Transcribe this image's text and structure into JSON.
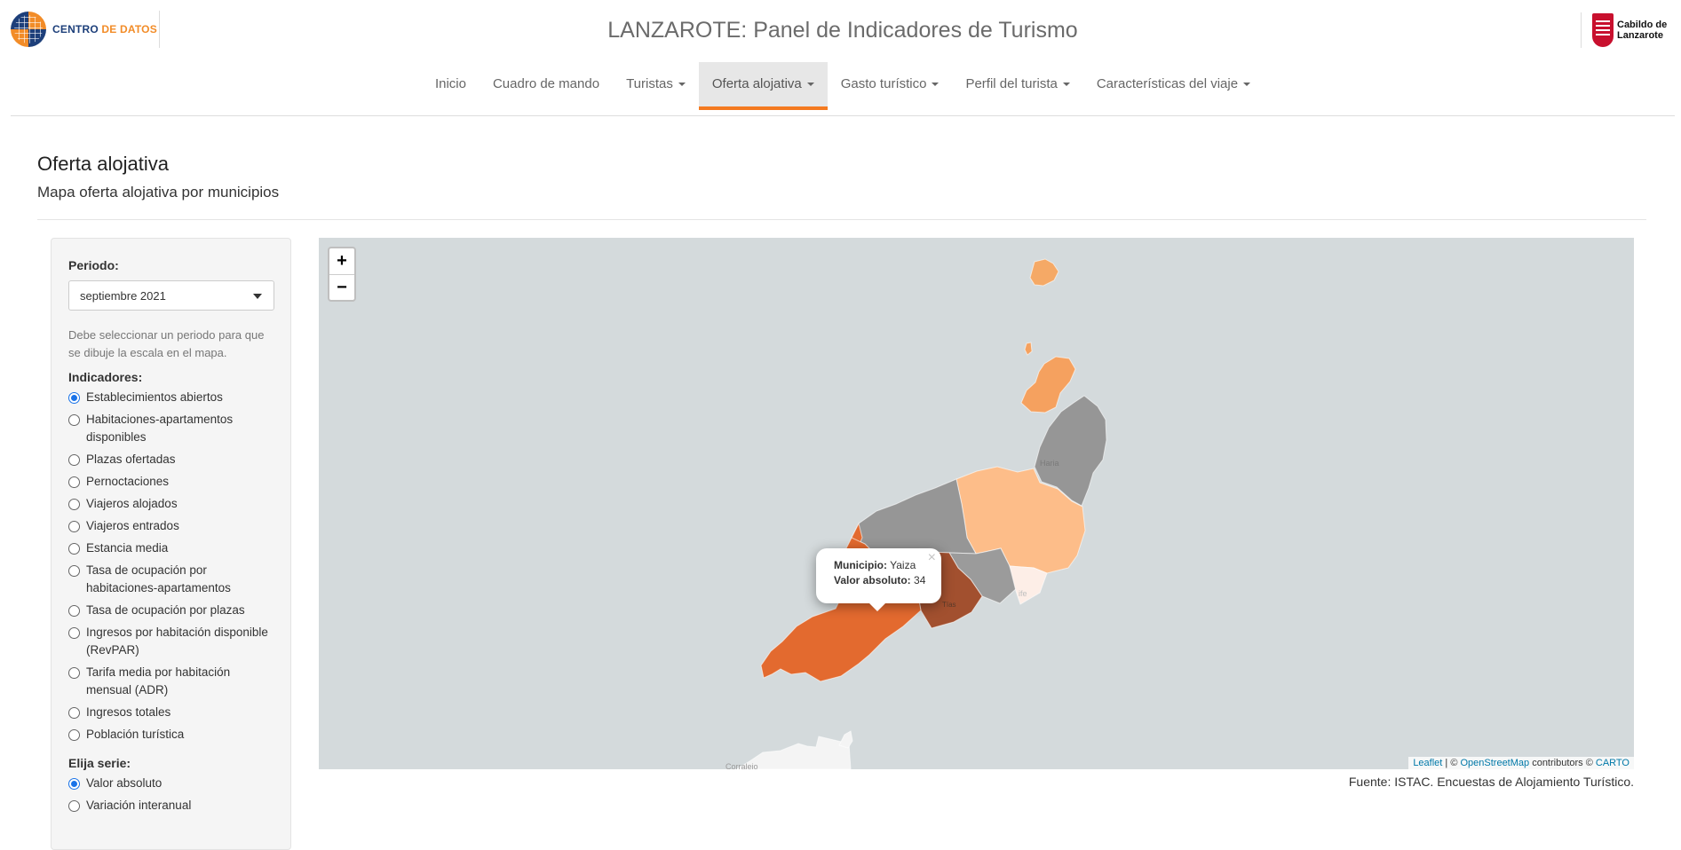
{
  "header": {
    "logo_left": {
      "part1": "CENTRO",
      "part2": "DE DATOS"
    },
    "title": "LANZAROTE: Panel de Indicadores de Turismo",
    "logo_right": {
      "line1": "Cabildo de",
      "line2": "Lanzarote"
    }
  },
  "nav": {
    "items": [
      {
        "label": "Inicio"
      },
      {
        "label": "Cuadro de mando"
      },
      {
        "label": "Turistas"
      },
      {
        "label": "Oferta alojativa"
      },
      {
        "label": "Gasto turístico"
      },
      {
        "label": "Perfil del turista"
      },
      {
        "label": "Características del viaje"
      }
    ],
    "active_index": 3
  },
  "page": {
    "title": "Oferta alojativa",
    "subtitle": "Mapa oferta alojativa por municipios"
  },
  "sidebar": {
    "periodo_label": "Periodo:",
    "periodo_value": "septiembre 2021",
    "help_text": "Debe seleccionar un periodo para que se dibuje la escala en el mapa.",
    "indicadores_label": "Indicadores:",
    "indicadores": [
      "Establecimientos abiertos",
      "Habitaciones-apartamentos disponibles",
      "Plazas ofertadas",
      "Pernoctaciones",
      "Viajeros alojados",
      "Viajeros entrados",
      "Estancia media",
      "Tasa de ocupación por habitaciones-apartamentos",
      "Tasa de ocupación por plazas",
      "Ingresos por habitación disponible (RevPAR)",
      "Tarifa media por habitación mensual (ADR)",
      "Ingresos totales",
      "Población turística"
    ],
    "indicador_selected": 0,
    "serie_label": "Elija serie:",
    "series": [
      "Valor absoluto",
      "Variación interanual"
    ],
    "serie_selected": 0
  },
  "map": {
    "zoom_in": "+",
    "zoom_out": "−",
    "colors": {
      "sea": "#d4dadc",
      "yaiza": "#e36a2f",
      "tias": "#a2502f",
      "teguise": "#fdbd89",
      "haria": "#969696",
      "tinajo": "#969696",
      "san_bartolome": "#9b9b9b",
      "arrecife": "#fdeee7",
      "la_graciosa": "#f5a15f",
      "alegranza": "#f5a966"
    },
    "popup": {
      "municipio_label": "Municipio:",
      "municipio_value": "Yaiza",
      "valor_label": "Valor absoluto:",
      "valor_value": "34"
    },
    "attribution": {
      "leaflet": "Leaflet",
      "sep": " | © ",
      "osm": "OpenStreetMap",
      "contrib": " contributors © ",
      "carto": "CARTO"
    }
  },
  "source": "Fuente: ISTAC. Encuestas de Alojamiento Turístico."
}
